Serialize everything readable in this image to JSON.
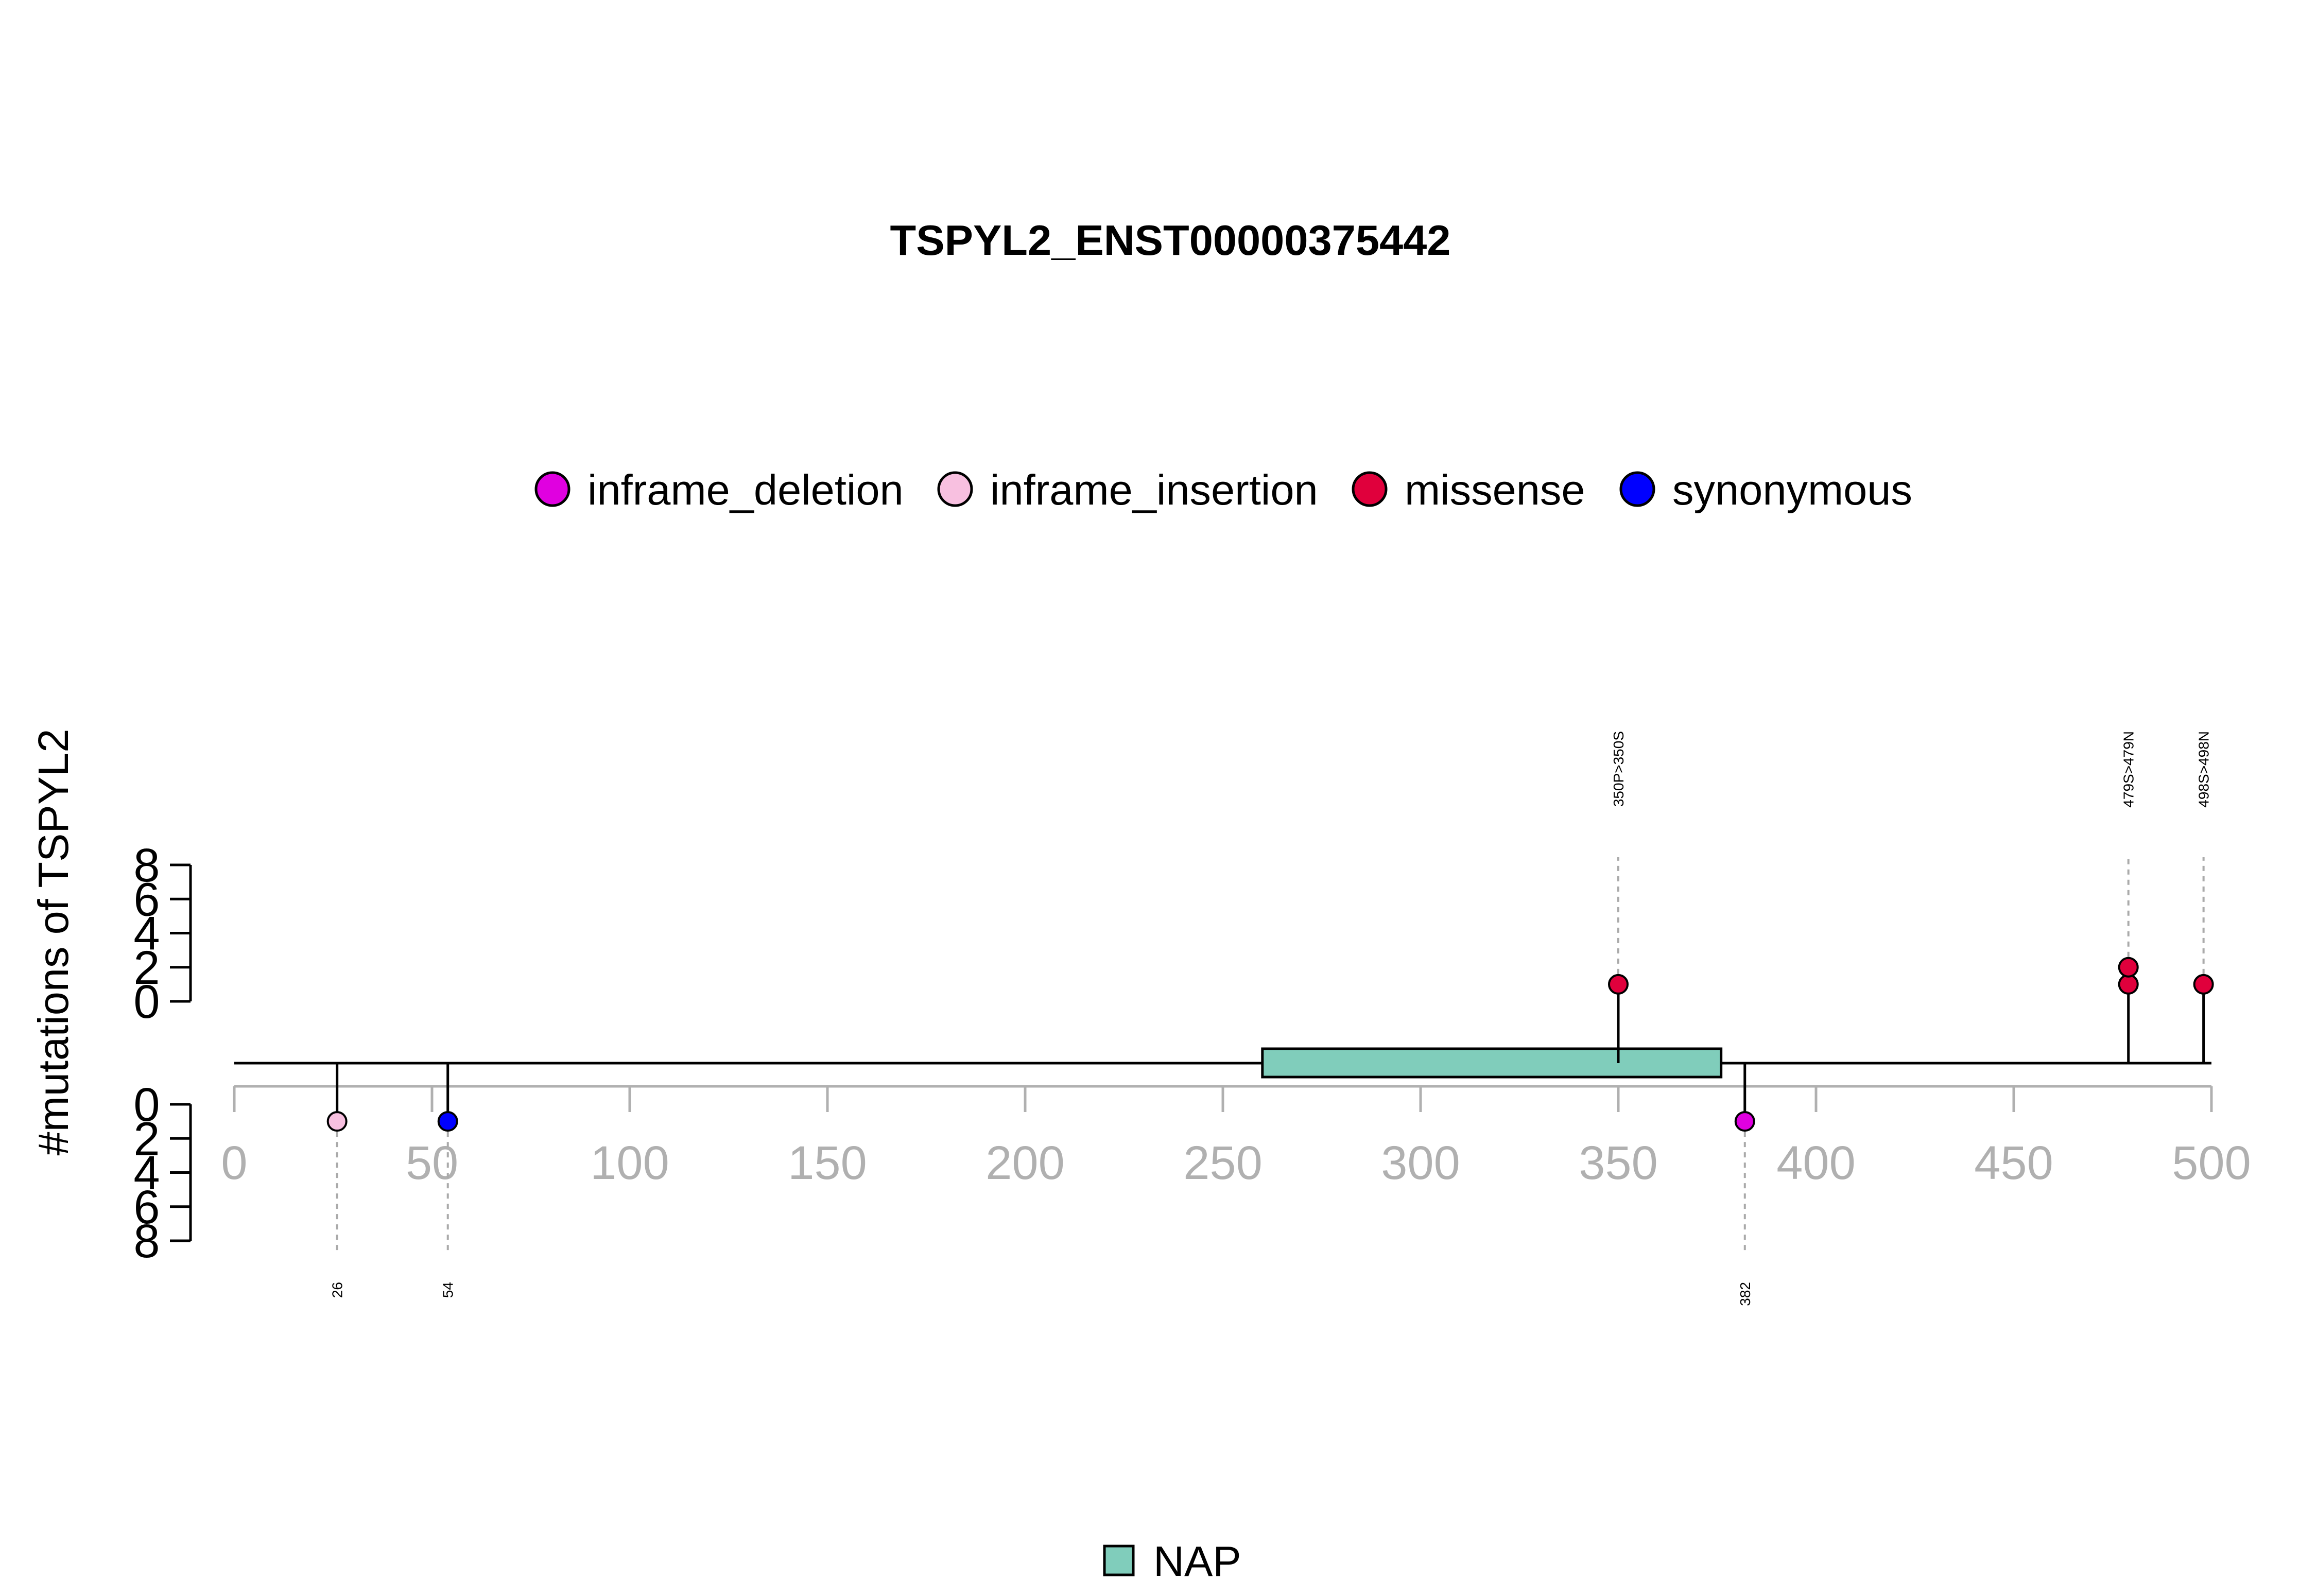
{
  "chart_data": {
    "type": "lollipop",
    "title": "TSPYL2_ENST00000375442",
    "ylabel": "#mutations of TSPYL2",
    "xlim": [
      0,
      500
    ],
    "x_ticks": [
      "0",
      "50",
      "100",
      "150",
      "200",
      "250",
      "300",
      "350",
      "400",
      "450",
      "500"
    ],
    "y_ticks": [
      "0",
      "2",
      "4",
      "6",
      "8"
    ],
    "ylim": [
      0,
      8
    ],
    "legend": [
      {
        "label": "inframe_deletion",
        "color": "#e000e0"
      },
      {
        "label": "inframe_insertion",
        "color": "#f8c0e0"
      },
      {
        "label": "missense",
        "color": "#e0003c"
      },
      {
        "label": "synonymous",
        "color": "#0000ff"
      }
    ],
    "domains": [
      {
        "name": "NAP",
        "start": 260,
        "end": 376,
        "color": "#80cdbb"
      }
    ],
    "mutations_top": [
      {
        "pos": 350,
        "count": 1,
        "type": "missense",
        "label": "350P>350S"
      },
      {
        "pos": 479,
        "count": 2,
        "type": "missense",
        "label": "479S>479N"
      },
      {
        "pos": 498,
        "count": 1,
        "type": "missense",
        "label": "498S>498N"
      }
    ],
    "mutations_bottom": [
      {
        "pos": 26,
        "count": 1,
        "type": "inframe_insertion",
        "label": "26"
      },
      {
        "pos": 54,
        "count": 1,
        "type": "synonymous",
        "label": "54"
      },
      {
        "pos": 382,
        "count": 1,
        "type": "inframe_deletion",
        "label": "382"
      }
    ]
  }
}
